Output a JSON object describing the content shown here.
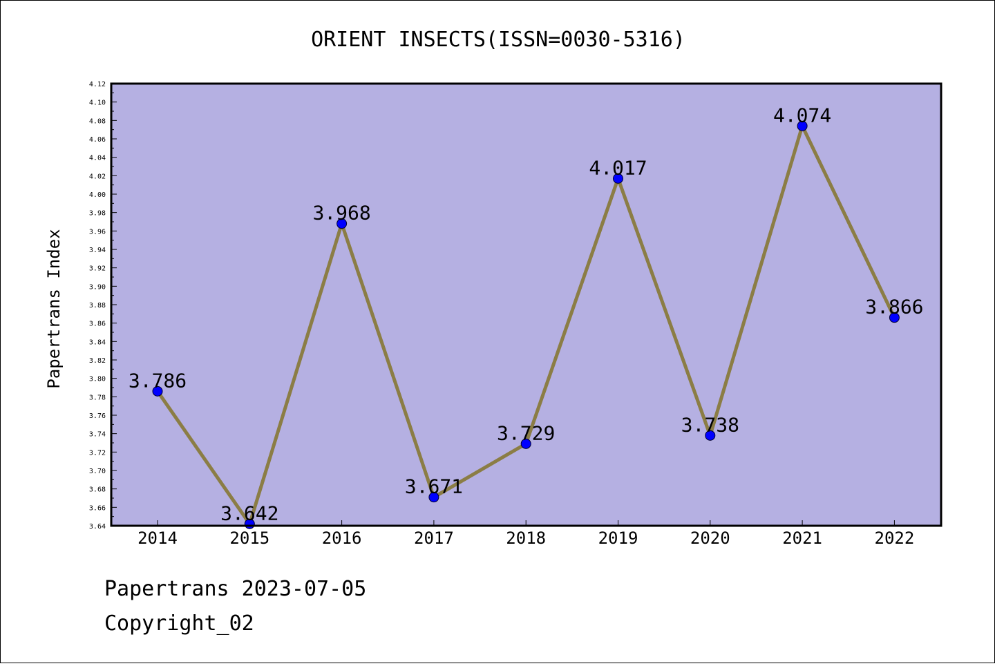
{
  "chart_data": {
    "type": "line",
    "title": "ORIENT INSECTS(ISSN=0030-5316)",
    "ylabel": "Papertrans Index",
    "xlabel": "",
    "categories": [
      "2014",
      "2015",
      "2016",
      "2017",
      "2018",
      "2019",
      "2020",
      "2021",
      "2022"
    ],
    "values": [
      3.786,
      3.642,
      3.968,
      3.671,
      3.729,
      4.017,
      3.738,
      4.074,
      3.866
    ],
    "value_labels": [
      "3.786",
      "3.642",
      "3.968",
      "3.671",
      "3.729",
      "4.017",
      "3.738",
      "4.074",
      "3.866"
    ],
    "ylim": [
      3.64,
      4.12
    ],
    "yticks": [
      "3.64",
      "3.66",
      "3.68",
      "3.70",
      "3.72",
      "3.74",
      "3.76",
      "3.78",
      "3.80",
      "3.82",
      "3.84",
      "3.86",
      "3.88",
      "3.90",
      "3.92",
      "3.94",
      "3.96",
      "3.98",
      "4.00",
      "4.02",
      "4.04",
      "4.06",
      "4.08",
      "4.10",
      "4.12"
    ],
    "grid": false,
    "colors": {
      "plot_background": "#b5b0e2",
      "line": "#8b7d45",
      "marker": "#0000ff"
    }
  },
  "footer": {
    "date_line": "Papertrans 2023-07-05",
    "copyright": "Copyright_02"
  }
}
